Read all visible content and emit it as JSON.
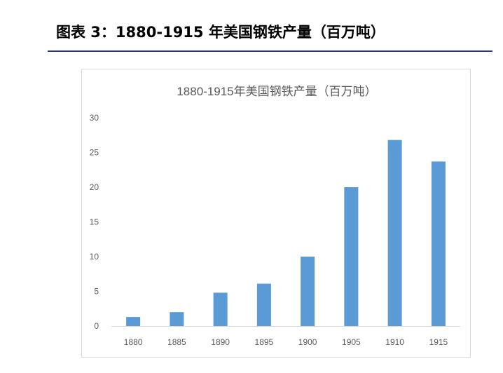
{
  "caption": "图表 3：1880-1915 年美国钢铁产量（百万吨）",
  "chart_data": {
    "type": "bar",
    "title": "1880-1915年美国钢铁产量（百万吨）",
    "categories": [
      "1880",
      "1885",
      "1890",
      "1895",
      "1900",
      "1905",
      "1910",
      "1915"
    ],
    "values": [
      1.3,
      2.0,
      4.8,
      6.1,
      10.0,
      20.0,
      26.8,
      23.7
    ],
    "xlabel": "",
    "ylabel": "",
    "ylim": [
      0,
      30
    ],
    "yticks": [
      0,
      5,
      10,
      15,
      20,
      25,
      30
    ],
    "grid": false,
    "legend": "none",
    "bar_color": "#5b9bd5",
    "axis_color": "#d9d9d9"
  }
}
